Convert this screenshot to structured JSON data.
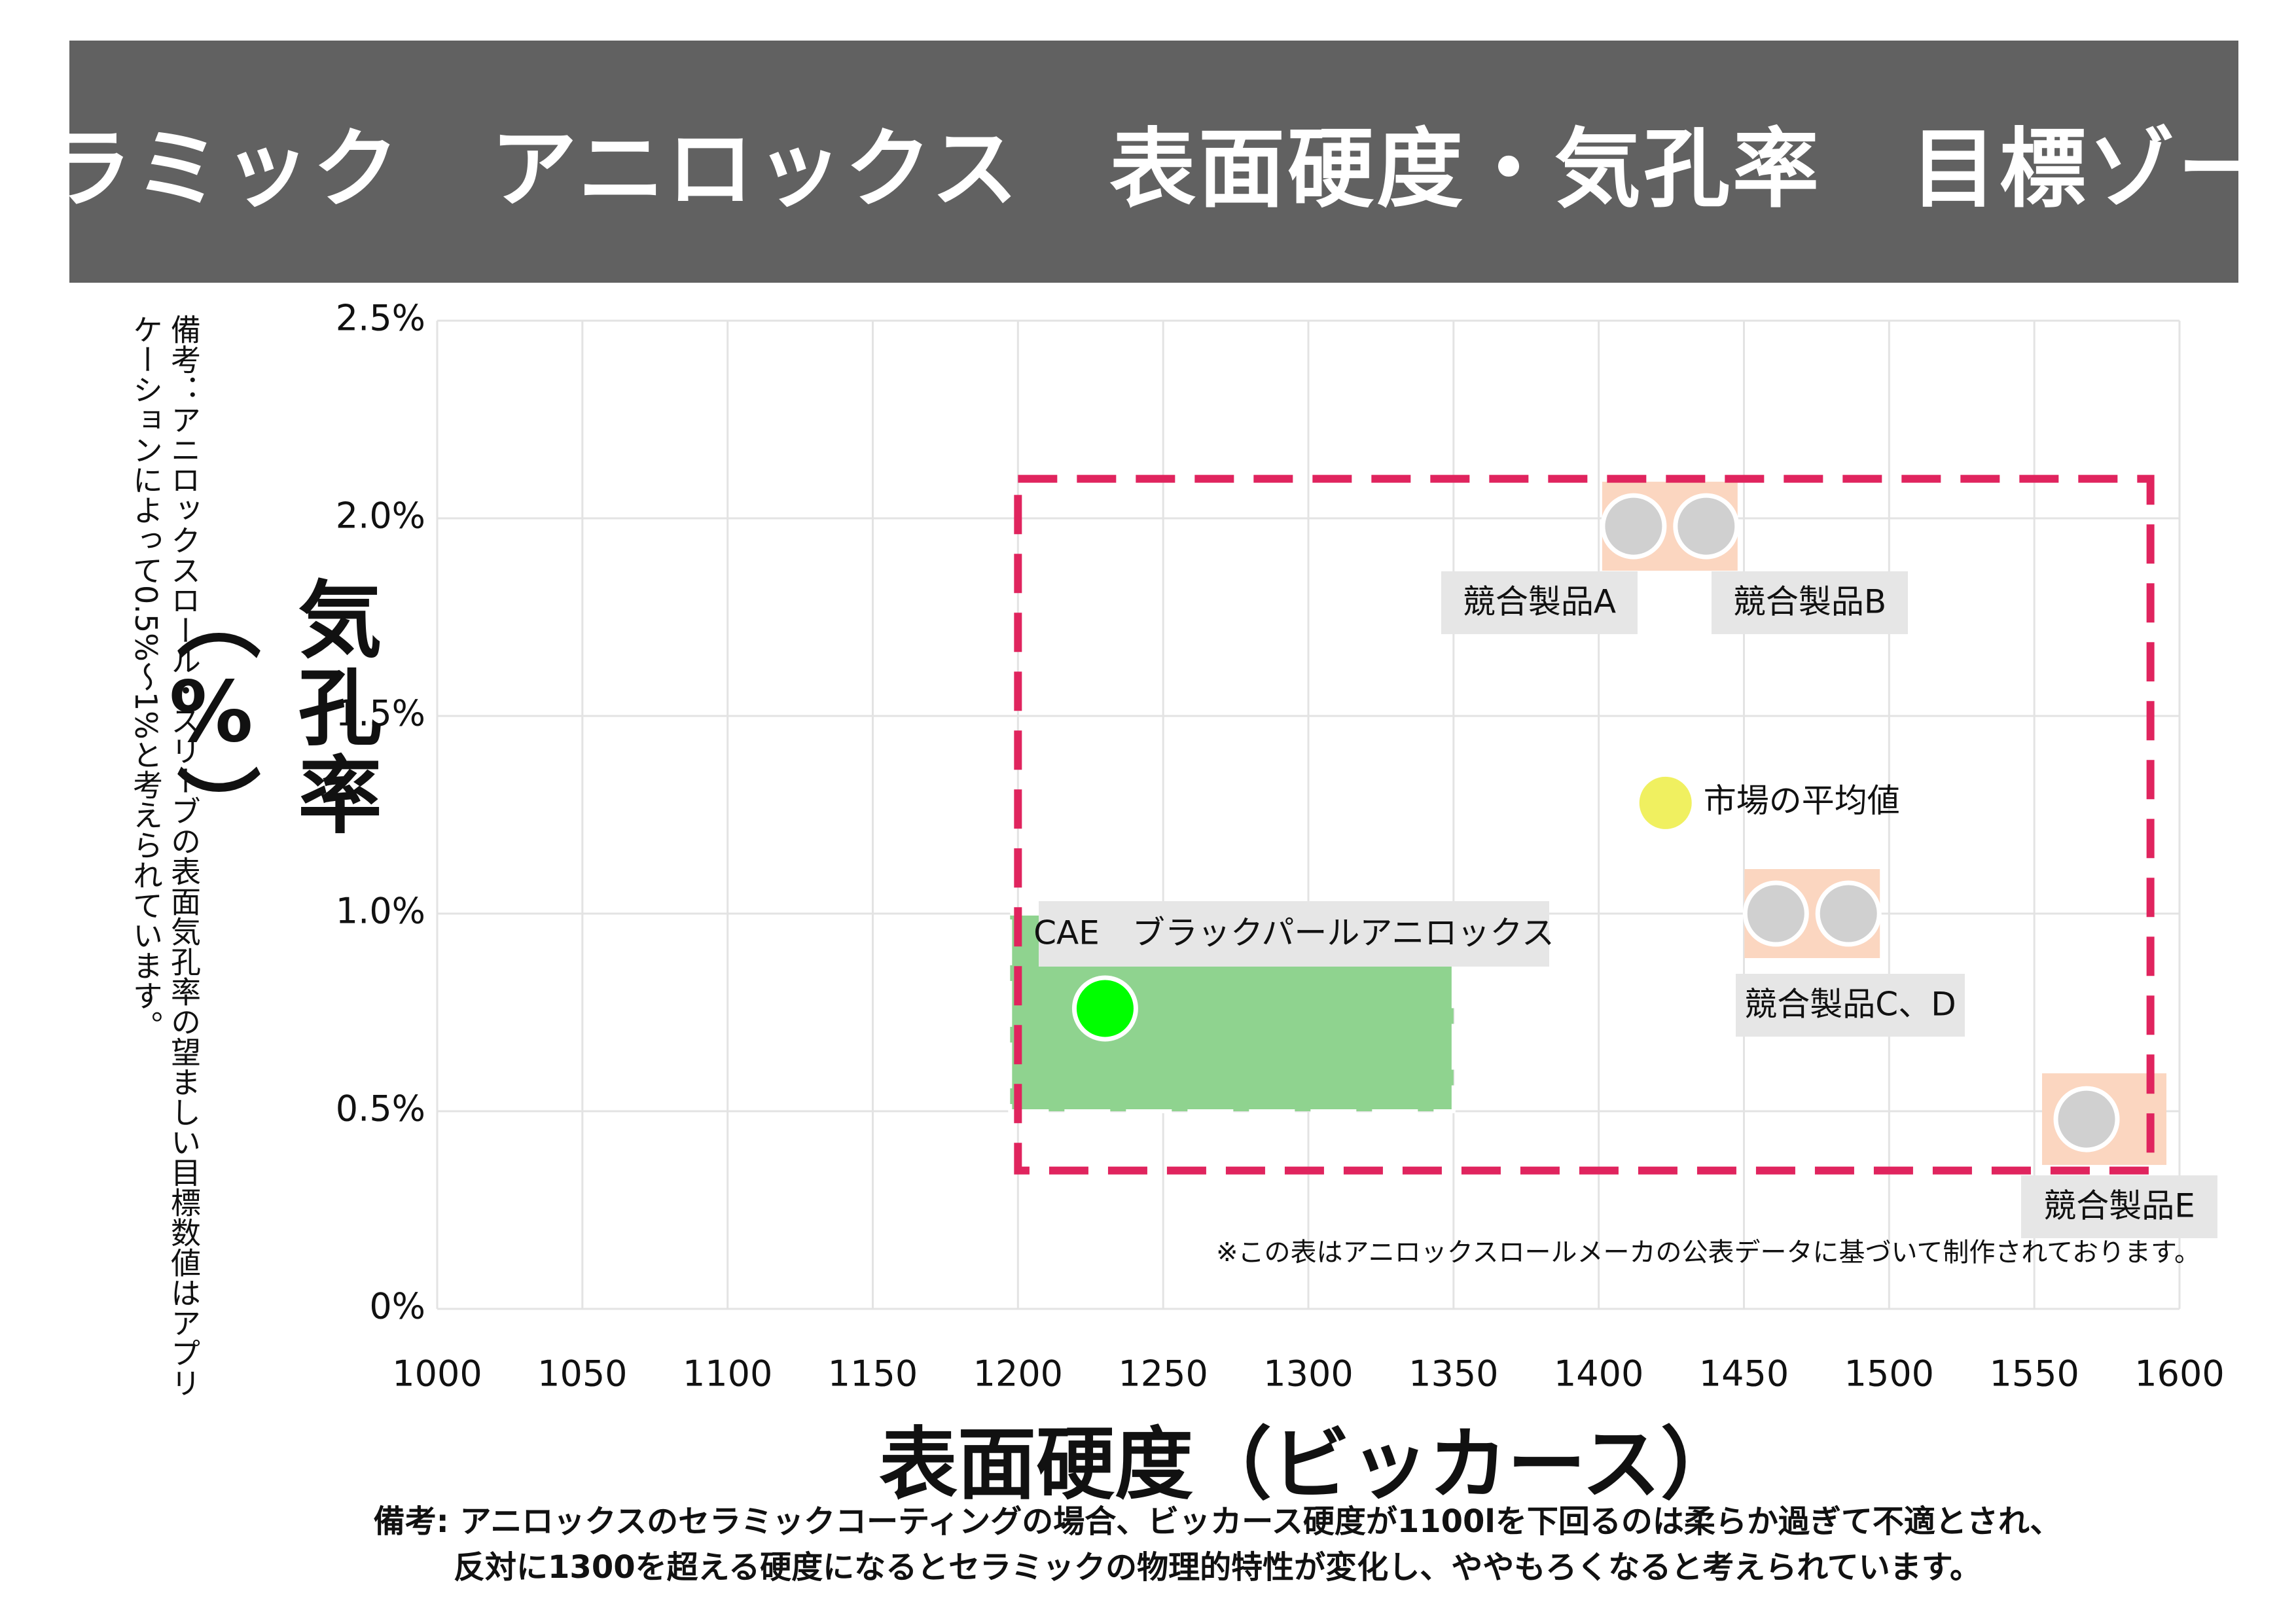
{
  "title": "セラミック　アニロックス　表面硬度・気孔率　目標ゾーン",
  "side_note": "備考：アニロックスロール・スリーブの表面気孔率の望ましい目標数値はアプリケーションによって0.5%〜1%と考えられています。",
  "source_note": "※この表はアニロックスロールメーカの公表データに基づいて制作されております。",
  "bottom_note_line1": "備考: アニロックスのセラミックコーティングの場合、ビッカース硬度が1100lを下回るのは柔らか過ぎて不適とされ、",
  "bottom_note_line2": "反対に1300を超える硬度になるとセラミックの物理的特性が変化し、ややもろくなると考えられています。",
  "chart_data": {
    "type": "scatter",
    "xlabel": "表面硬度（ビッカース）",
    "ylabel": "気孔率（%）",
    "xlim": [
      1000,
      1600
    ],
    "ylim": [
      0,
      2.5
    ],
    "xticks": [
      1000,
      1050,
      1100,
      1150,
      1200,
      1250,
      1300,
      1350,
      1400,
      1450,
      1500,
      1550,
      1600
    ],
    "yticks": [
      0,
      0.5,
      1.0,
      1.5,
      2.0,
      2.5
    ],
    "ytick_labels": [
      "0%",
      "0.5%",
      "1.0%",
      "1.5%",
      "2.0%",
      "2.5%"
    ],
    "grid": true,
    "target_zone": {
      "x": [
        1200,
        1590
      ],
      "y": [
        0.35,
        2.1
      ],
      "color": "#e0245e",
      "style": "dashed"
    },
    "cae_zone": {
      "x": [
        1200,
        1350
      ],
      "y": [
        0.5,
        1.0
      ],
      "color": "#8fd38f"
    },
    "points": [
      {
        "label": "CAE　ブラックパールアニロックス",
        "x": 1230,
        "y": 0.76,
        "color": "#00ff00",
        "label_pos": "top"
      },
      {
        "label": "競合製品A",
        "x": 1412,
        "y": 1.98,
        "color": "#d0d0d0",
        "label_pos": "bottom-left"
      },
      {
        "label": "競合製品B",
        "x": 1437,
        "y": 1.98,
        "color": "#d0d0d0",
        "label_pos": "bottom-right"
      },
      {
        "label": "市場の平均値",
        "x": 1423,
        "y": 1.28,
        "color": "#f0f060",
        "label_pos": "right"
      },
      {
        "label": "競合製品C、D",
        "x": [
          1461,
          1486
        ],
        "y": 1.0,
        "color": "#d0d0d0",
        "label_pos": "bottom"
      },
      {
        "label": "競合製品E",
        "x": 1568,
        "y": 0.48,
        "color": "#d0d0d0",
        "label_pos": "bottom"
      }
    ],
    "highlight_color": "#fbd6c0"
  }
}
